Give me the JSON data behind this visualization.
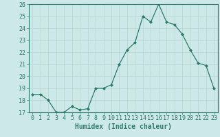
{
  "x": [
    0,
    1,
    2,
    3,
    4,
    5,
    6,
    7,
    8,
    9,
    10,
    11,
    12,
    13,
    14,
    15,
    16,
    17,
    18,
    19,
    20,
    21,
    22,
    23
  ],
  "y": [
    18.5,
    18.5,
    18.0,
    17.0,
    17.0,
    17.5,
    17.2,
    17.3,
    19.0,
    19.0,
    19.3,
    21.0,
    22.2,
    22.8,
    25.0,
    24.5,
    26.0,
    24.5,
    24.3,
    23.5,
    22.2,
    21.1,
    20.9,
    19.0
  ],
  "xlabel": "Humidex (Indice chaleur)",
  "ylim": [
    17,
    26
  ],
  "xlim": [
    -0.5,
    23.5
  ],
  "yticks": [
    17,
    18,
    19,
    20,
    21,
    22,
    23,
    24,
    25,
    26
  ],
  "xticks": [
    0,
    1,
    2,
    3,
    4,
    5,
    6,
    7,
    8,
    9,
    10,
    11,
    12,
    13,
    14,
    15,
    16,
    17,
    18,
    19,
    20,
    21,
    22,
    23
  ],
  "line_color": "#2d7a6a",
  "marker": "D",
  "marker_size": 2.0,
  "line_width": 0.9,
  "bg_color": "#cce8e8",
  "grid_color": "#b8d8d0",
  "axis_color": "#2d7a6a",
  "tick_color": "#2d7a6a",
  "label_color": "#2d7a6a",
  "xlabel_fontsize": 7,
  "tick_fontsize": 6
}
